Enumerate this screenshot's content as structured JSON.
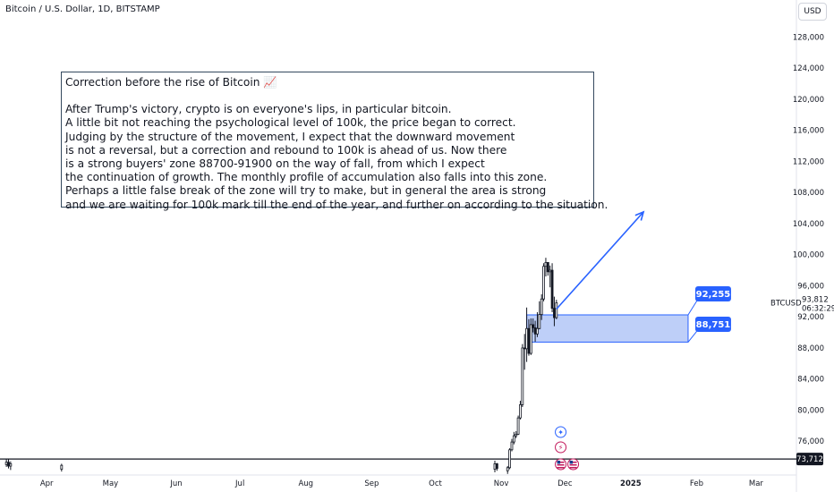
{
  "header": {
    "title": "Bitcoin / U.S. Dollar, 1D, BITSTAMP",
    "currency_button": "USD"
  },
  "note": {
    "title": "Correction before the rise of Bitcoin 📈",
    "lines": [
      "After Trump's victory, crypto is on everyone's lips, in particular bitcoin.",
      "A little bit not reaching the psychological level of 100k, the price began to correct.",
      "Judging by the structure of the movement, I expect that the downward movement",
      "is not a reversal, but a correction and rebound to 100k is ahead of us. Now there",
      "is a strong buyers' zone 88700-91900 on the way of fall, from which I expect",
      "the continuation of growth. The monthly profile of accumulation also falls into this zone.",
      "Perhaps a little false break of the zone will try to make, but in general the area is strong",
      "and we are waiting for 100k mark till the end of the year, and further on according to the situation."
    ]
  },
  "colors": {
    "candle": "#131722",
    "zone_fill": "#b3c7f7",
    "zone_border": "#2962ff",
    "arrow": "#2962ff",
    "label_bg": "#2962ff",
    "last_price_bg": "#131722"
  },
  "chart_data": {
    "type": "candlestick",
    "symbol": "BTCUSD",
    "y_ticks": [
      76000,
      80000,
      84000,
      88000,
      92000,
      96000,
      100000,
      104000,
      108000,
      112000,
      116000,
      120000,
      124000,
      128000
    ],
    "y_tick_labels": [
      "76,000",
      "80,000",
      "84,000",
      "88,000",
      "92,000",
      "96,000",
      "100,000",
      "104,000",
      "108,000",
      "112,000",
      "116,000",
      "120,000",
      "124,000",
      "128,000"
    ],
    "y_range": [
      72000,
      130000
    ],
    "x_labels": [
      "Apr",
      "May",
      "Jun",
      "Jul",
      "Aug",
      "Sep",
      "Oct",
      "Nov",
      "Dec",
      "2025",
      "Feb",
      "Mar"
    ],
    "x_label_dates": [
      "2024-04-01",
      "2024-05-01",
      "2024-06-01",
      "2024-07-01",
      "2024-08-01",
      "2024-09-01",
      "2024-10-01",
      "2024-11-01",
      "2024-12-01",
      "2025-01-01",
      "2025-02-01",
      "2025-03-01"
    ],
    "x_range": [
      "2024-03-10",
      "2025-03-20"
    ],
    "current_price": "93,812",
    "countdown": "06:32:29",
    "horizontal_line": {
      "value": 73712,
      "label": "73,712"
    },
    "zone": {
      "from": "2024-11-13",
      "to": "2025-01-28",
      "top": 92255,
      "bottom": 88751,
      "top_label": "92,255",
      "bottom_label": "88,751"
    },
    "arrow": {
      "from_date": "2024-11-27",
      "from_value": 93000,
      "to_date": "2025-01-07",
      "to_value": 105500
    },
    "candles": [
      {
        "date": "2024-03-13",
        "open": 73000,
        "high": 73750,
        "low": 72700,
        "close": 73300
      },
      {
        "date": "2024-03-14",
        "open": 73300,
        "high": 73700,
        "low": 72500,
        "close": 72800
      },
      {
        "date": "2024-03-15",
        "open": 72800,
        "high": 73400,
        "low": 72300,
        "close": 73100
      },
      {
        "date": "2024-04-08",
        "open": 72400,
        "high": 73100,
        "low": 72100,
        "close": 72900
      },
      {
        "date": "2024-10-29",
        "open": 72400,
        "high": 73500,
        "low": 72000,
        "close": 73100
      },
      {
        "date": "2024-10-30",
        "open": 73100,
        "high": 73200,
        "low": 72200,
        "close": 72500
      },
      {
        "date": "2024-11-04",
        "open": 72200,
        "high": 72800,
        "low": 71800,
        "close": 72600
      },
      {
        "date": "2024-11-05",
        "open": 72600,
        "high": 75100,
        "low": 72400,
        "close": 74900
      },
      {
        "date": "2024-11-06",
        "open": 74900,
        "high": 76300,
        "low": 74700,
        "close": 75900
      },
      {
        "date": "2024-11-07",
        "open": 75900,
        "high": 77200,
        "low": 75600,
        "close": 76700
      },
      {
        "date": "2024-11-08",
        "open": 76700,
        "high": 77300,
        "low": 76400,
        "close": 76900
      },
      {
        "date": "2024-11-09",
        "open": 76900,
        "high": 79300,
        "low": 76800,
        "close": 79000
      },
      {
        "date": "2024-11-10",
        "open": 79000,
        "high": 81200,
        "low": 78800,
        "close": 80700
      },
      {
        "date": "2024-11-11",
        "open": 80700,
        "high": 88500,
        "low": 80400,
        "close": 88000
      },
      {
        "date": "2024-11-12",
        "open": 88000,
        "high": 89800,
        "low": 85200,
        "close": 87900
      },
      {
        "date": "2024-11-13",
        "open": 87900,
        "high": 93200,
        "low": 86200,
        "close": 90500
      },
      {
        "date": "2024-11-14",
        "open": 90500,
        "high": 91700,
        "low": 87000,
        "close": 87300
      },
      {
        "date": "2024-11-15",
        "open": 87300,
        "high": 91800,
        "low": 87100,
        "close": 91000
      },
      {
        "date": "2024-11-16",
        "open": 91000,
        "high": 91800,
        "low": 90000,
        "close": 90600
      },
      {
        "date": "2024-11-17",
        "open": 90600,
        "high": 91500,
        "low": 88800,
        "close": 89800
      },
      {
        "date": "2024-11-18",
        "open": 89800,
        "high": 92600,
        "low": 89400,
        "close": 90500
      },
      {
        "date": "2024-11-19",
        "open": 90500,
        "high": 94000,
        "low": 90400,
        "close": 92300
      },
      {
        "date": "2024-11-20",
        "open": 92300,
        "high": 94900,
        "low": 91600,
        "close": 94300
      },
      {
        "date": "2024-11-21",
        "open": 94300,
        "high": 98900,
        "low": 94000,
        "close": 98500
      },
      {
        "date": "2024-11-22",
        "open": 98500,
        "high": 99600,
        "low": 97200,
        "close": 99000
      },
      {
        "date": "2024-11-23",
        "open": 99000,
        "high": 99000,
        "low": 97300,
        "close": 97800
      },
      {
        "date": "2024-11-24",
        "open": 97800,
        "high": 98600,
        "low": 95800,
        "close": 98000
      },
      {
        "date": "2024-11-25",
        "open": 98000,
        "high": 98900,
        "low": 92600,
        "close": 93100
      },
      {
        "date": "2024-11-26",
        "open": 93100,
        "high": 94600,
        "low": 90800,
        "close": 91900
      },
      {
        "date": "2024-11-27",
        "open": 91900,
        "high": 94200,
        "low": 91700,
        "close": 93812
      }
    ]
  }
}
